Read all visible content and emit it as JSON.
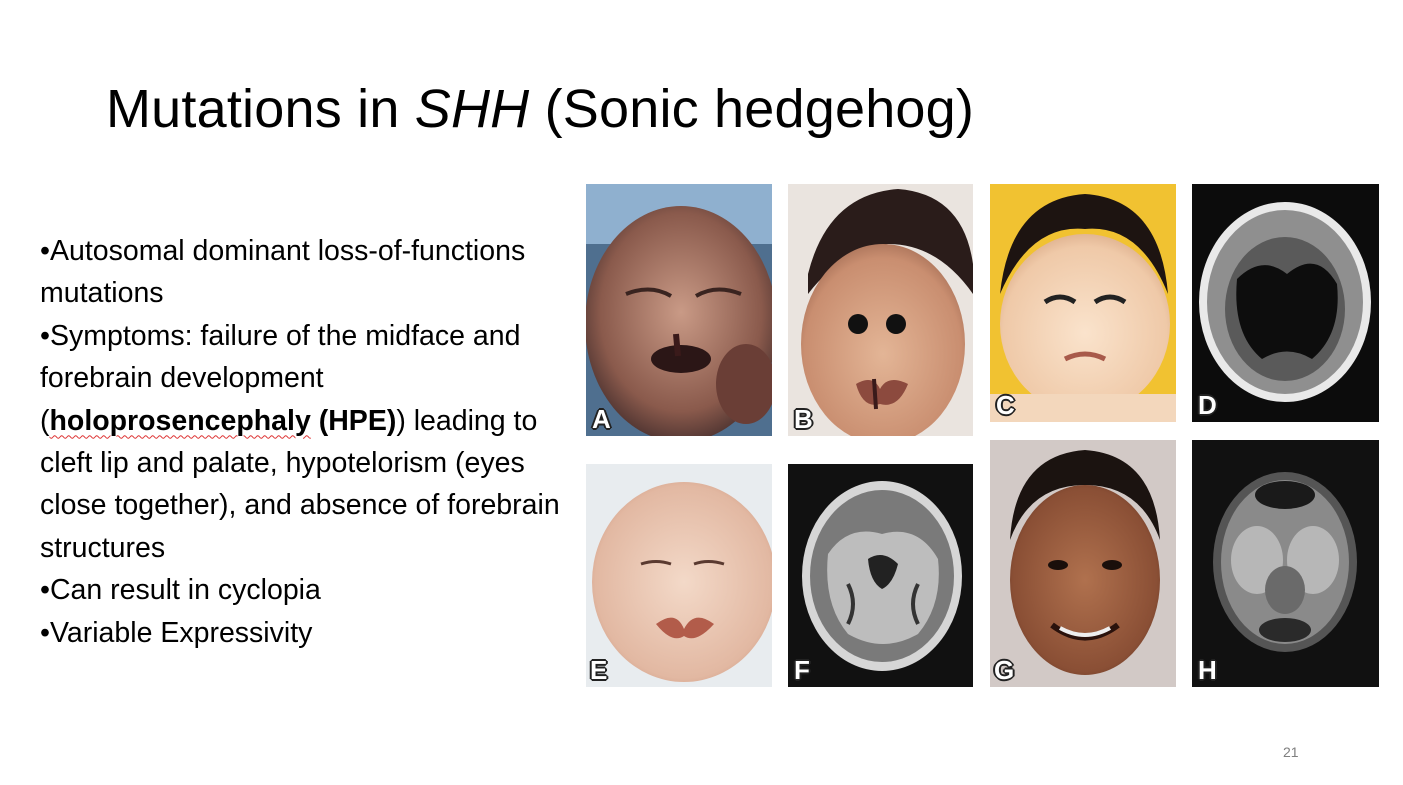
{
  "slide": {
    "title": {
      "prefix": "Mutations in ",
      "gene": "SHH",
      "suffix": " (Sonic hedgehog)"
    },
    "bullets": {
      "b1": "•Autosomal dominant loss-of-functions mutations",
      "b2_pre": "•Symptoms: failure of the midface and forebrain development (",
      "b2_bold": "holoprosencephaly",
      "b2_bold2": " (HPE)",
      "b2_post": ") leading to cleft lip and palate, hypotelorism (eyes close together), and absence of forebrain structures",
      "b3": "•Can result in cyclopia",
      "b4": "•Variable Expressivity"
    },
    "page_number": "21"
  },
  "figure": {
    "panels": [
      {
        "letter": "A",
        "kind": "infant-face-photo"
      },
      {
        "letter": "B",
        "kind": "infant-face-photo"
      },
      {
        "letter": "C",
        "kind": "infant-face-photo"
      },
      {
        "letter": "D",
        "kind": "brain-ct-scan"
      },
      {
        "letter": "E",
        "kind": "infant-face-photo"
      },
      {
        "letter": "F",
        "kind": "brain-mri-scan"
      },
      {
        "letter": "G",
        "kind": "child-face-photo"
      },
      {
        "letter": "H",
        "kind": "brain-mri-scan"
      }
    ]
  }
}
